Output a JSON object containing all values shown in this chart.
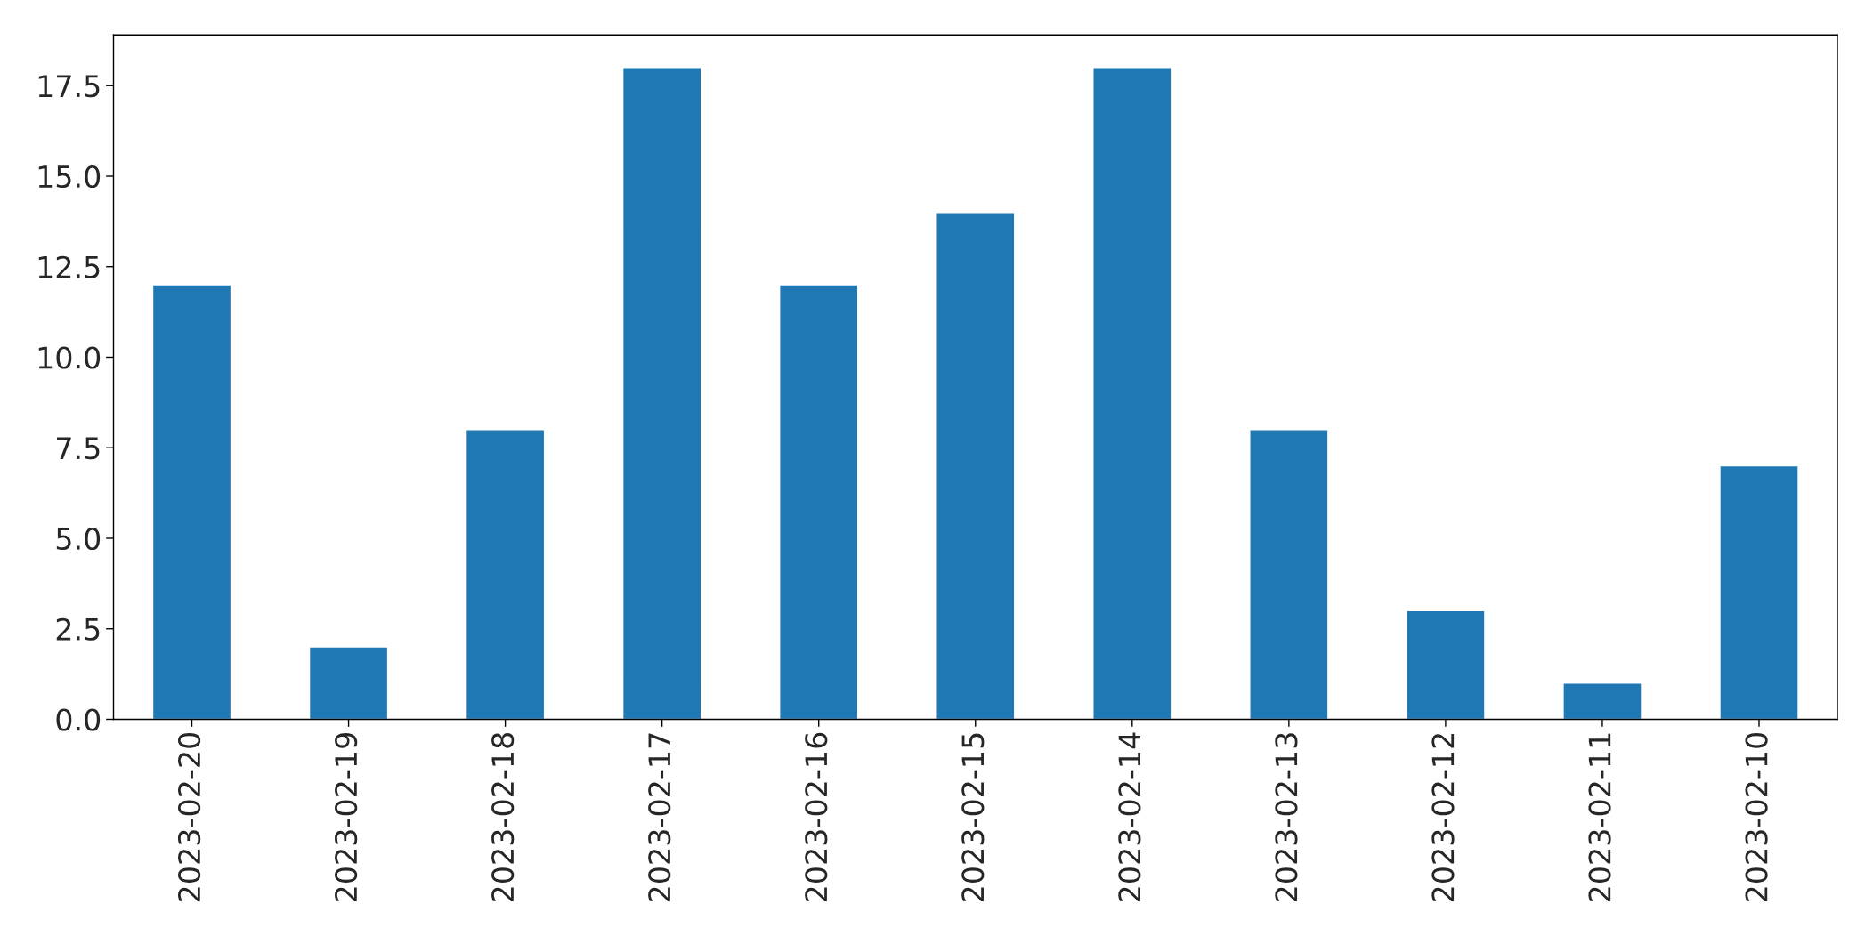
{
  "chart_data": {
    "type": "bar",
    "categories": [
      "2023-02-20",
      "2023-02-19",
      "2023-02-18",
      "2023-02-17",
      "2023-02-16",
      "2023-02-15",
      "2023-02-14",
      "2023-02-13",
      "2023-02-12",
      "2023-02-11",
      "2023-02-10"
    ],
    "values": [
      12,
      2,
      8,
      18,
      12,
      14,
      18,
      8,
      3,
      1,
      7
    ],
    "color": "#1f77b4",
    "ylim": [
      0,
      18.9
    ],
    "yticks": [
      {
        "value": 0,
        "label": "0.0"
      },
      {
        "value": 2.5,
        "label": "2.5"
      },
      {
        "value": 5,
        "label": "5.0"
      },
      {
        "value": 7.5,
        "label": "7.5"
      },
      {
        "value": 10,
        "label": "10.0"
      },
      {
        "value": 12.5,
        "label": "12.5"
      },
      {
        "value": 15,
        "label": "15.0"
      },
      {
        "value": 17.5,
        "label": "17.5"
      }
    ],
    "grid": false
  }
}
